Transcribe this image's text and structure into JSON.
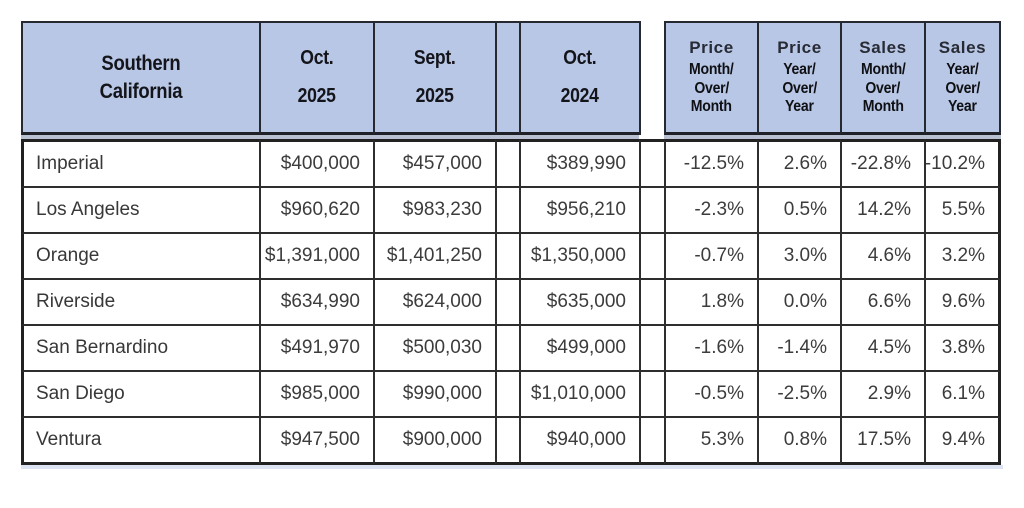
{
  "table": {
    "header": {
      "region": {
        "line1": "Southern",
        "line2": "California"
      },
      "oct2025": {
        "month": "Oct.",
        "year": "2025"
      },
      "sept2025": {
        "month": "Sept.",
        "year": "2025"
      },
      "oct2024": {
        "month": "Oct.",
        "year": "2024"
      },
      "price_mom": {
        "word": "Price",
        "l1": "Month/",
        "l2": "Over/",
        "l3": "Month"
      },
      "price_yoy": {
        "word": "Price",
        "l1": "Year/",
        "l2": "Over/",
        "l3": "Year"
      },
      "sales_mom": {
        "word": "Sales",
        "l1": "Month/",
        "l2": "Over/",
        "l3": "Month"
      },
      "sales_yoy": {
        "word": "Sales",
        "l1": "Year/",
        "l2": "Over/",
        "l3": "Year"
      }
    },
    "rows": [
      {
        "region": "Imperial",
        "oct2025": "$400,000",
        "sept2025": "$457,000",
        "oct2024": "$389,990",
        "price_mom": "-12.5%",
        "price_yoy": "2.6%",
        "sales_mom": "-22.8%",
        "sales_yoy": "-10.2%"
      },
      {
        "region": "Los Angeles",
        "oct2025": "$960,620",
        "sept2025": "$983,230",
        "oct2024": "$956,210",
        "price_mom": "-2.3%",
        "price_yoy": "0.5%",
        "sales_mom": "14.2%",
        "sales_yoy": "5.5%"
      },
      {
        "region": "Orange",
        "oct2025": "$1,391,000",
        "sept2025": "$1,401,250",
        "oct2024": "$1,350,000",
        "price_mom": "-0.7%",
        "price_yoy": "3.0%",
        "sales_mom": "4.6%",
        "sales_yoy": "3.2%"
      },
      {
        "region": "Riverside",
        "oct2025": "$634,990",
        "sept2025": "$624,000",
        "oct2024": "$635,000",
        "price_mom": "1.8%",
        "price_yoy": "0.0%",
        "sales_mom": "6.6%",
        "sales_yoy": "9.6%"
      },
      {
        "region": "San Bernardino",
        "oct2025": "$491,970",
        "sept2025": "$500,030",
        "oct2024": "$499,000",
        "price_mom": "-1.6%",
        "price_yoy": "-1.4%",
        "sales_mom": "4.5%",
        "sales_yoy": "3.8%"
      },
      {
        "region": "San Diego",
        "oct2025": "$985,000",
        "sept2025": "$990,000",
        "oct2024": "$1,010,000",
        "price_mom": "-0.5%",
        "price_yoy": "-2.5%",
        "sales_mom": "2.9%",
        "sales_yoy": "6.1%"
      },
      {
        "region": "Ventura",
        "oct2025": "$947,500",
        "sept2025": "$900,000",
        "oct2024": "$940,000",
        "price_mom": "5.3%",
        "price_yoy": "0.8%",
        "sales_mom": "17.5%",
        "sales_yoy": "9.4%"
      }
    ]
  },
  "colors": {
    "header_bg": "#b9c7e6",
    "border_dark": "#262930",
    "body_border": "#2e2e2e",
    "body_text": "#3c3c3c",
    "header_text": "#14151a"
  },
  "chart_data": {
    "type": "table",
    "title": "Southern California",
    "columns": [
      "Southern California",
      "Oct. 2025",
      "Sept. 2025",
      "Oct. 2024",
      "Price Month/Over/Month",
      "Price Year/Over/Year",
      "Sales Month/Over/Month",
      "Sales Year/Over/Year"
    ],
    "rows": [
      [
        "Imperial",
        "$400,000",
        "$457,000",
        "$389,990",
        "-12.5%",
        "2.6%",
        "-22.8%",
        "-10.2%"
      ],
      [
        "Los Angeles",
        "$960,620",
        "$983,230",
        "$956,210",
        "-2.3%",
        "0.5%",
        "14.2%",
        "5.5%"
      ],
      [
        "Orange",
        "$1,391,000",
        "$1,401,250",
        "$1,350,000",
        "-0.7%",
        "3.0%",
        "4.6%",
        "3.2%"
      ],
      [
        "Riverside",
        "$634,990",
        "$624,000",
        "$635,000",
        "1.8%",
        "0.0%",
        "6.6%",
        "9.6%"
      ],
      [
        "San Bernardino",
        "$491,970",
        "$500,030",
        "$499,000",
        "-1.6%",
        "-1.4%",
        "4.5%",
        "3.8%"
      ],
      [
        "San Diego",
        "$985,000",
        "$990,000",
        "$1,010,000",
        "-0.5%",
        "-2.5%",
        "2.9%",
        "6.1%"
      ],
      [
        "Ventura",
        "$947,500",
        "$900,000",
        "$940,000",
        "5.3%",
        "0.8%",
        "17.5%",
        "9.4%"
      ]
    ],
    "layout": "first column region names left-aligned; numeric columns right-aligned; blue header band; two narrow empty spacer columns after Sept. 2025 and after Oct. 2024"
  }
}
